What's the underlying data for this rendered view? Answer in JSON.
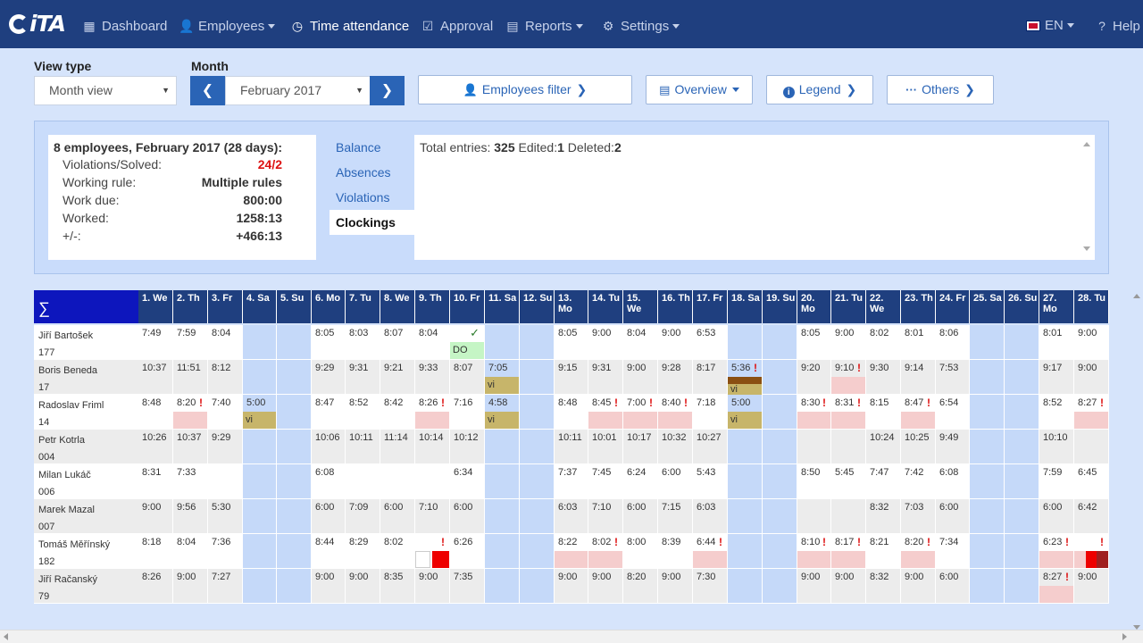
{
  "nav": {
    "logo": "iTA",
    "items": [
      {
        "label": "Dashboard",
        "icon": "grid-icon",
        "glyph": "▦",
        "left": 92,
        "caret": false,
        "active": false
      },
      {
        "label": "Employees",
        "icon": "user-icon",
        "glyph": "👤",
        "left": 200,
        "caret": true,
        "active": false
      },
      {
        "label": "Time attendance",
        "icon": "clock-icon",
        "glyph": "◷",
        "left": 325,
        "caret": false,
        "active": true
      },
      {
        "label": "Approval",
        "icon": "check-square-icon",
        "glyph": "☑",
        "left": 471,
        "caret": false,
        "active": false
      },
      {
        "label": "Reports",
        "icon": "print-icon",
        "glyph": "▤",
        "left": 566,
        "caret": true,
        "active": false
      },
      {
        "label": "Settings",
        "icon": "gear-icon",
        "glyph": "⚙",
        "left": 673,
        "caret": true,
        "active": false
      }
    ],
    "language": "EN",
    "help": "Help"
  },
  "toolbar": {
    "view_type_label": "View type",
    "view_type_value": "Month view",
    "month_label": "Month",
    "month_value": "February 2017",
    "prev": "❮",
    "next": "❯",
    "employees_filter": "Employees filter",
    "overview": "Overview",
    "legend": "Legend",
    "others": "Others"
  },
  "summary": {
    "title": "8 employees, February 2017 (28 days):",
    "rows": [
      {
        "label": "Violations/Solved:",
        "value": "24/2",
        "red": true
      },
      {
        "label": "Working rule:",
        "value": "Multiple rules",
        "red": false
      },
      {
        "label": "Work due:",
        "value": "800:00",
        "red": false
      },
      {
        "label": "Worked:",
        "value": "1258:13",
        "red": false
      },
      {
        "label": "+/-:",
        "value": "+466:13",
        "red": false
      }
    ],
    "tabs": [
      "Balance",
      "Absences",
      "Violations",
      "Clockings"
    ],
    "active_tab": "Clockings",
    "content": {
      "total_label": "Total entries: ",
      "total_value": "325",
      "edited_label": " Edited:",
      "edited_value": "1",
      "deleted_label": " Deleted:",
      "deleted_value": "2"
    }
  },
  "grid": {
    "sigma": "∑",
    "days": [
      "1. We",
      "2. Th",
      "3. Fr",
      "4. Sa",
      "5. Su",
      "6. Mo",
      "7. Tu",
      "8. We",
      "9. Th",
      "10. Fr",
      "11. Sa",
      "12. Su",
      "13. Mo",
      "14. Tu",
      "15. We",
      "16. Th",
      "17. Fr",
      "18. Sa",
      "19. Su",
      "20. Mo",
      "21. Tu",
      "22. We",
      "23. Th",
      "24. Fr",
      "25. Sa",
      "26. Su",
      "27. Mo",
      "28. Tu"
    ],
    "weekend": [
      3,
      4,
      10,
      11,
      17,
      18,
      24,
      25
    ],
    "employees": [
      {
        "name": "Jiří Bartošek",
        "id": "177",
        "cells": [
          "7:49",
          "7:59",
          "8:04",
          "",
          "",
          "8:05",
          "8:03",
          "8:07",
          "8:04",
          "",
          "",
          "",
          "8:05",
          "9:00",
          "8:04",
          "9:00",
          "6:53",
          "",
          "",
          "8:05",
          "9:00",
          "8:02",
          "8:01",
          "8:06",
          "",
          "",
          "8:01",
          "9:00"
        ]
      },
      {
        "name": "Boris Beneda",
        "id": "17",
        "cells": [
          "10:37",
          "11:51",
          "8:12",
          "",
          "",
          "9:29",
          "9:31",
          "9:21",
          "9:33",
          "8:07",
          "7:05",
          "",
          "9:15",
          "9:31",
          "9:00",
          "9:28",
          "8:17",
          "5:36",
          "",
          "9:20",
          "9:10",
          "9:30",
          "9:14",
          "7:53",
          "",
          "",
          "9:17",
          "9:00"
        ]
      },
      {
        "name": "Radoslav Friml",
        "id": "14",
        "cells": [
          "8:48",
          "8:20",
          "7:40",
          "5:00",
          "",
          "8:47",
          "8:52",
          "8:42",
          "8:26",
          "7:16",
          "4:58",
          "",
          "8:48",
          "8:45",
          "7:00",
          "8:40",
          "7:18",
          "5:00",
          "",
          "8:30",
          "8:31",
          "8:15",
          "8:47",
          "6:54",
          "",
          "",
          "8:52",
          "8:27"
        ]
      },
      {
        "name": "Petr Kotrla",
        "id": "004",
        "cells": [
          "10:26",
          "10:37",
          "9:29",
          "",
          "",
          "10:06",
          "10:11",
          "11:14",
          "10:14",
          "10:12",
          "",
          "",
          "10:11",
          "10:01",
          "10:17",
          "10:32",
          "10:27",
          "",
          "",
          "",
          "",
          "10:24",
          "10:25",
          "9:49",
          "",
          "",
          "10:10",
          ""
        ]
      },
      {
        "name": "Milan Lukáč",
        "id": "006",
        "cells": [
          "8:31",
          "7:33",
          "",
          "",
          "",
          "6:08",
          "",
          "",
          "",
          "6:34",
          "",
          "",
          "7:37",
          "7:45",
          "6:24",
          "6:00",
          "5:43",
          "",
          "",
          "8:50",
          "5:45",
          "7:47",
          "7:42",
          "6:08",
          "",
          "",
          "7:59",
          "6:45"
        ]
      },
      {
        "name": "Marek Mazal",
        "id": "007",
        "cells": [
          "9:00",
          "9:56",
          "5:30",
          "",
          "",
          "6:00",
          "7:09",
          "6:00",
          "7:10",
          "6:00",
          "",
          "",
          "6:03",
          "7:10",
          "6:00",
          "7:15",
          "6:03",
          "",
          "",
          "",
          "",
          "8:32",
          "7:03",
          "6:00",
          "",
          "",
          "6:00",
          "6:42"
        ]
      },
      {
        "name": "Tomáš Měřínský",
        "id": "182",
        "cells": [
          "8:18",
          "8:04",
          "7:36",
          "",
          "",
          "8:44",
          "8:29",
          "8:02",
          "",
          "6:26",
          "",
          "",
          "8:22",
          "8:02",
          "8:00",
          "8:39",
          "6:44",
          "",
          "",
          "8:10",
          "8:17",
          "8:21",
          "8:20",
          "7:34",
          "",
          "",
          "6:23",
          ""
        ]
      },
      {
        "name": "Jiří Račanský",
        "id": "79",
        "cells": [
          "8:26",
          "9:00",
          "7:27",
          "",
          "",
          "9:00",
          "9:00",
          "8:35",
          "9:00",
          "7:35",
          "",
          "",
          "9:00",
          "9:00",
          "8:20",
          "9:00",
          "7:30",
          "",
          "",
          "9:00",
          "9:00",
          "8:32",
          "9:00",
          "6:00",
          "",
          "",
          "8:27",
          "9:00"
        ]
      }
    ],
    "bar_labels": {
      "vi": "vi",
      "do": "DO"
    }
  }
}
